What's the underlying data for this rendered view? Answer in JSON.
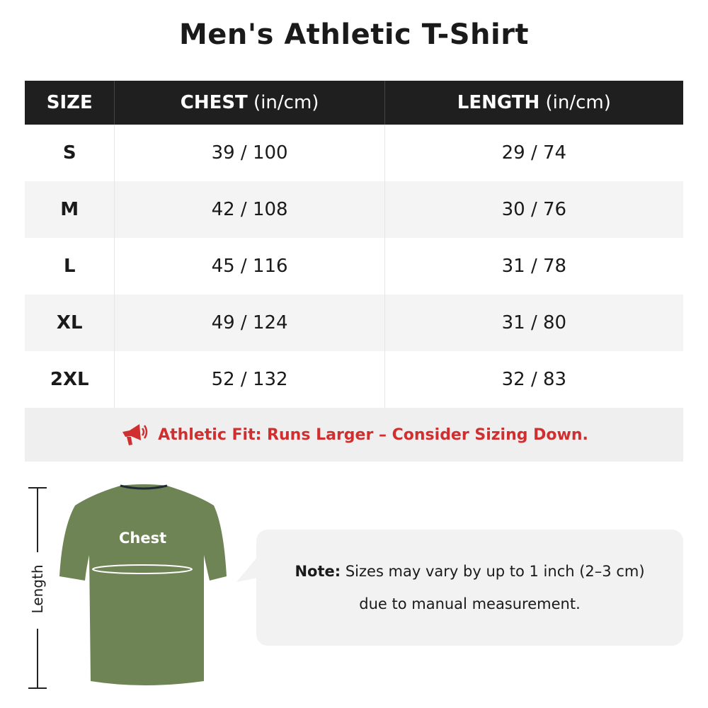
{
  "title": "Men's Athletic T-Shirt",
  "table": {
    "headers": [
      {
        "label": "SIZE",
        "unit": ""
      },
      {
        "label": "CHEST",
        "unit": " (in/cm)"
      },
      {
        "label": "LENGTH",
        "unit": " (in/cm)"
      }
    ],
    "rows": [
      [
        "S",
        "39 / 100",
        "29 / 74"
      ],
      [
        "M",
        "42 / 108",
        "30 / 76"
      ],
      [
        "L",
        "45 / 116",
        "31 / 78"
      ],
      [
        "XL",
        "49 / 124",
        "31 / 80"
      ],
      [
        "2XL",
        "52 / 132",
        "32 / 83"
      ]
    ]
  },
  "fit_notice": {
    "icon": "megaphone-icon",
    "text": "Athletic Fit: Runs Larger – Consider Sizing Down.",
    "color": "#d12f2f"
  },
  "diagram": {
    "chest_label": "Chest",
    "length_label": "Length",
    "shirt_color": "#6e8454"
  },
  "note": {
    "label": "Note:",
    "line1": " Sizes may vary by up to 1 inch (2–3 cm)",
    "line2": "due to manual measurement."
  }
}
